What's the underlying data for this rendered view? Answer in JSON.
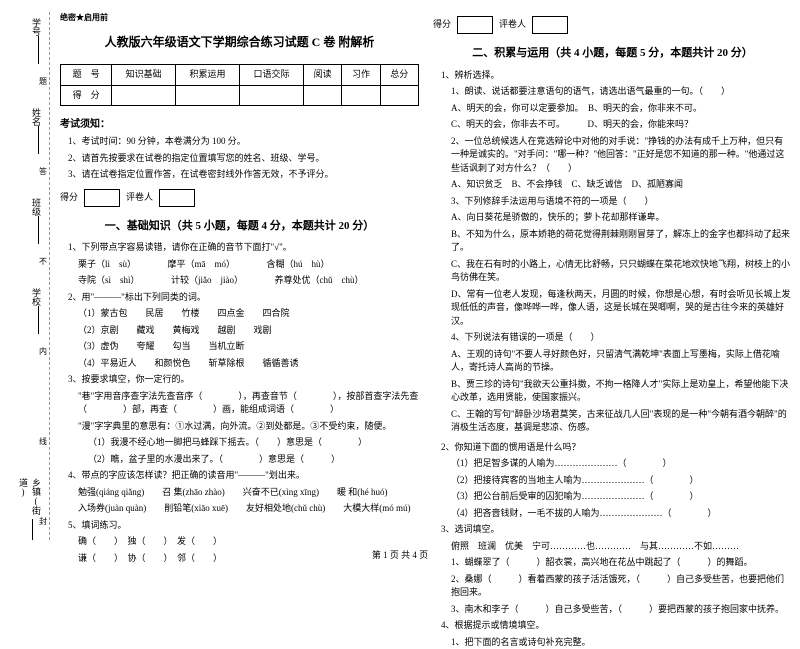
{
  "spine": {
    "labels": [
      "学号",
      "姓名",
      "班级",
      "学校",
      "乡镇(街道)"
    ],
    "side_chars": [
      "题",
      "答",
      "不",
      "内",
      "线",
      "封"
    ]
  },
  "secret": "绝密★启用前",
  "title": "人教版六年级语文下学期综合练习试题 C 卷 附解析",
  "score_table": {
    "headers": [
      "题　号",
      "知识基础",
      "积累运用",
      "口语交际",
      "阅读",
      "习作",
      "总分"
    ],
    "row_label": "得　分"
  },
  "notice_header": "考试须知：",
  "notices": [
    "1、考试时间：90 分钟，本卷满分为 100 分。",
    "2、请首先按要求在试卷的指定位置填写您的姓名、班级、学号。",
    "3、请在试卷指定位置作答，在试卷密封线外作答无效，不予评分。"
  ],
  "score_label_1": "得分",
  "score_label_2": "评卷人",
  "section1_h": "一、基础知识（共 5 小题，每题 4 分，本题共计 20 分）",
  "q1_lead": "1、下列带点字容易读错，请你在正确的音节下面打\"√\"。",
  "q1_items": [
    "栗子（lì　sù）　　　　摩平（mā　mó）　　　　含糊（hú　hù）",
    "寺院（sì　shì）　　　　计较（jiǎo　jiào）　　　　养尊处优（chǔ　chù）"
  ],
  "q2_lead": "2、用\"———\"标出下列同类的词。",
  "q2_items": [
    "（1）蒙古包　　民居　　竹楼　　四点金　　四合院",
    "（2）京剧　　藏戏　　黄梅戏　　越剧　　戏剧",
    "（3）虚伪　　夸耀　　勾当　　当机立断",
    "（4）平易近人　　和颜悦色　　斩草除根　　循循善诱"
  ],
  "q3_lead": "3、按要求填空，你一定行的。",
  "q3_text": "\"巷\"字用音序查字法先查音序（　　　　），再查音节（　　　　），按部首查字法先查（　　　　）部，再查（　　　　）画，能组成词语（　　　　）",
  "q3_text2": "\"漫\"字字典里的意思有：①水过满，向外流。②到处都是。③不受约束，随便。",
  "q3_opts": [
    "（1）我漫不经心地一脚把马蜂踩下摇去。（　　）意思是（　　　　）",
    "（2）瞧，盆子里的水漫出来了。（　　　　）意思是（　　　）"
  ],
  "q4_lead": "4、带点的字应该怎样读？把正确的读音用\"———\"划出来。",
  "q4_items": [
    "勉强(qiáng qiǎng)　　召 集(zhāo zhào)　　兴奋不已(xìng xīng)　　暖 和(hé huó)",
    "入场券(juàn quàn)　　削铅笔(xiāo xuē)　　友好相处地(chǔ chù)　　大模大样(mó mú)"
  ],
  "q5_lead": "5、填词练习。",
  "q5_items": [
    "确（　　）　独（　　）　发（　　）",
    "谦（　　）　协（　　）　邻（　　）"
  ],
  "section2_h": "二、积累与运用（共 4 小题，每题 5 分，本题共计 20 分）",
  "r1_lead": "1、辨析选择。",
  "r1_items": [
    "1、朗读、说话都要注意语句的语气，请选出语气最重的一句。（　　）",
    "A、明天的会，你可以定要参加。　B、明天的会，你非来不可。",
    "C、明天的会，你非去不可。　　　D、明天的会，你能来吗？",
    "2、一位总统候选人在竞选辩论中对他的对手说：\"挣钱的办法有成千上万种，但只有一种是诚实的。\"对手问：\"哪一种？\"他回答：\"正好是您不知道的那一种。\"他通过这些话讽刺了对方什么？（　　）",
    "A、知识贫乏　B、不会挣钱　C、缺乏诚信　D、孤陋寡闻",
    "3、下列修辞手法运用与语境不符的一项是（　　）",
    "A、向日葵花是骄傲的，快乐的；萝卜花却那样谦卑。",
    "B、不知为什么，原本娇艳的荷花觉得荆棘刚刚冒芽了，解冻上的金字也都抖动了起来了。",
    "C、我在石有时的小路上，心情无比舒畅，只只蝴蝶在菜花地欢快地飞翔，树枝上的小鸟彷佛在笑。",
    "D、常有一位老人发现，每逢秋两天，月圆的时候，你想是心想，有时会听见长城上发现低低的声音，像哗哗一哗，像人语，这是长城在哭唧啊，哭的是古往今来的英雄好汉。",
    "4、下列说法有错误的一项是（　　）",
    "A、王观的诗句\"不要人寻好颜色好，只留清气满乾坤\"表面上写墨梅，实际上借花喻人，寄托诗人高尚的节操。",
    "B、贾三珍的诗句\"我欲天公重抖擞，不拘一格降人才\"实际上是劝皇上，希望他能下决心改革，选用贤能，使国家振兴。",
    "C、王翰的写句\"醉卧沙场君莫笑，古来征战几人回\"表现的是一种\"今朝有酒今朝醉\"的消极生活态度，基调是悲凉、伤感。"
  ],
  "r2_lead": "2、你知道下面的惯用语是什么吗？",
  "r2_items": [
    "（1）把足智多谋的人喻为…………………（　　　　）",
    "（2）把接待宾客的当地主人喻为…………………（　　　　）",
    "（3）把公台前后受审的囚犯喻为…………………（　　　　）",
    "（4）把吝啬钱财，一毛不拔的人喻为…………………（　　　　）"
  ],
  "r3_lead": "3、选词填空。",
  "r3_a": "俯照　班澜　优美　宁可…………也…………　与其…………不如………",
  "r3_items": [
    "1、蝴蝶翠了（　　　）韶衣裳，高兴地在花丛中跳起了（　　　）的舞蹈。",
    "2、桑娜（　　　）看着西蒙的孩子活活饿死，（　　　）自己多受些苦，也要把他们抱回来。",
    "3、南木和李子（　　　）自己多受些苦，（　　　）要把西蒙的孩子抱回家中抚养。"
  ],
  "r4_lead": "4、根据提示或情境填空。",
  "r4_item": "1、把下面的名言或诗句补充完整。",
  "footer": "第 1 页 共 4 页"
}
